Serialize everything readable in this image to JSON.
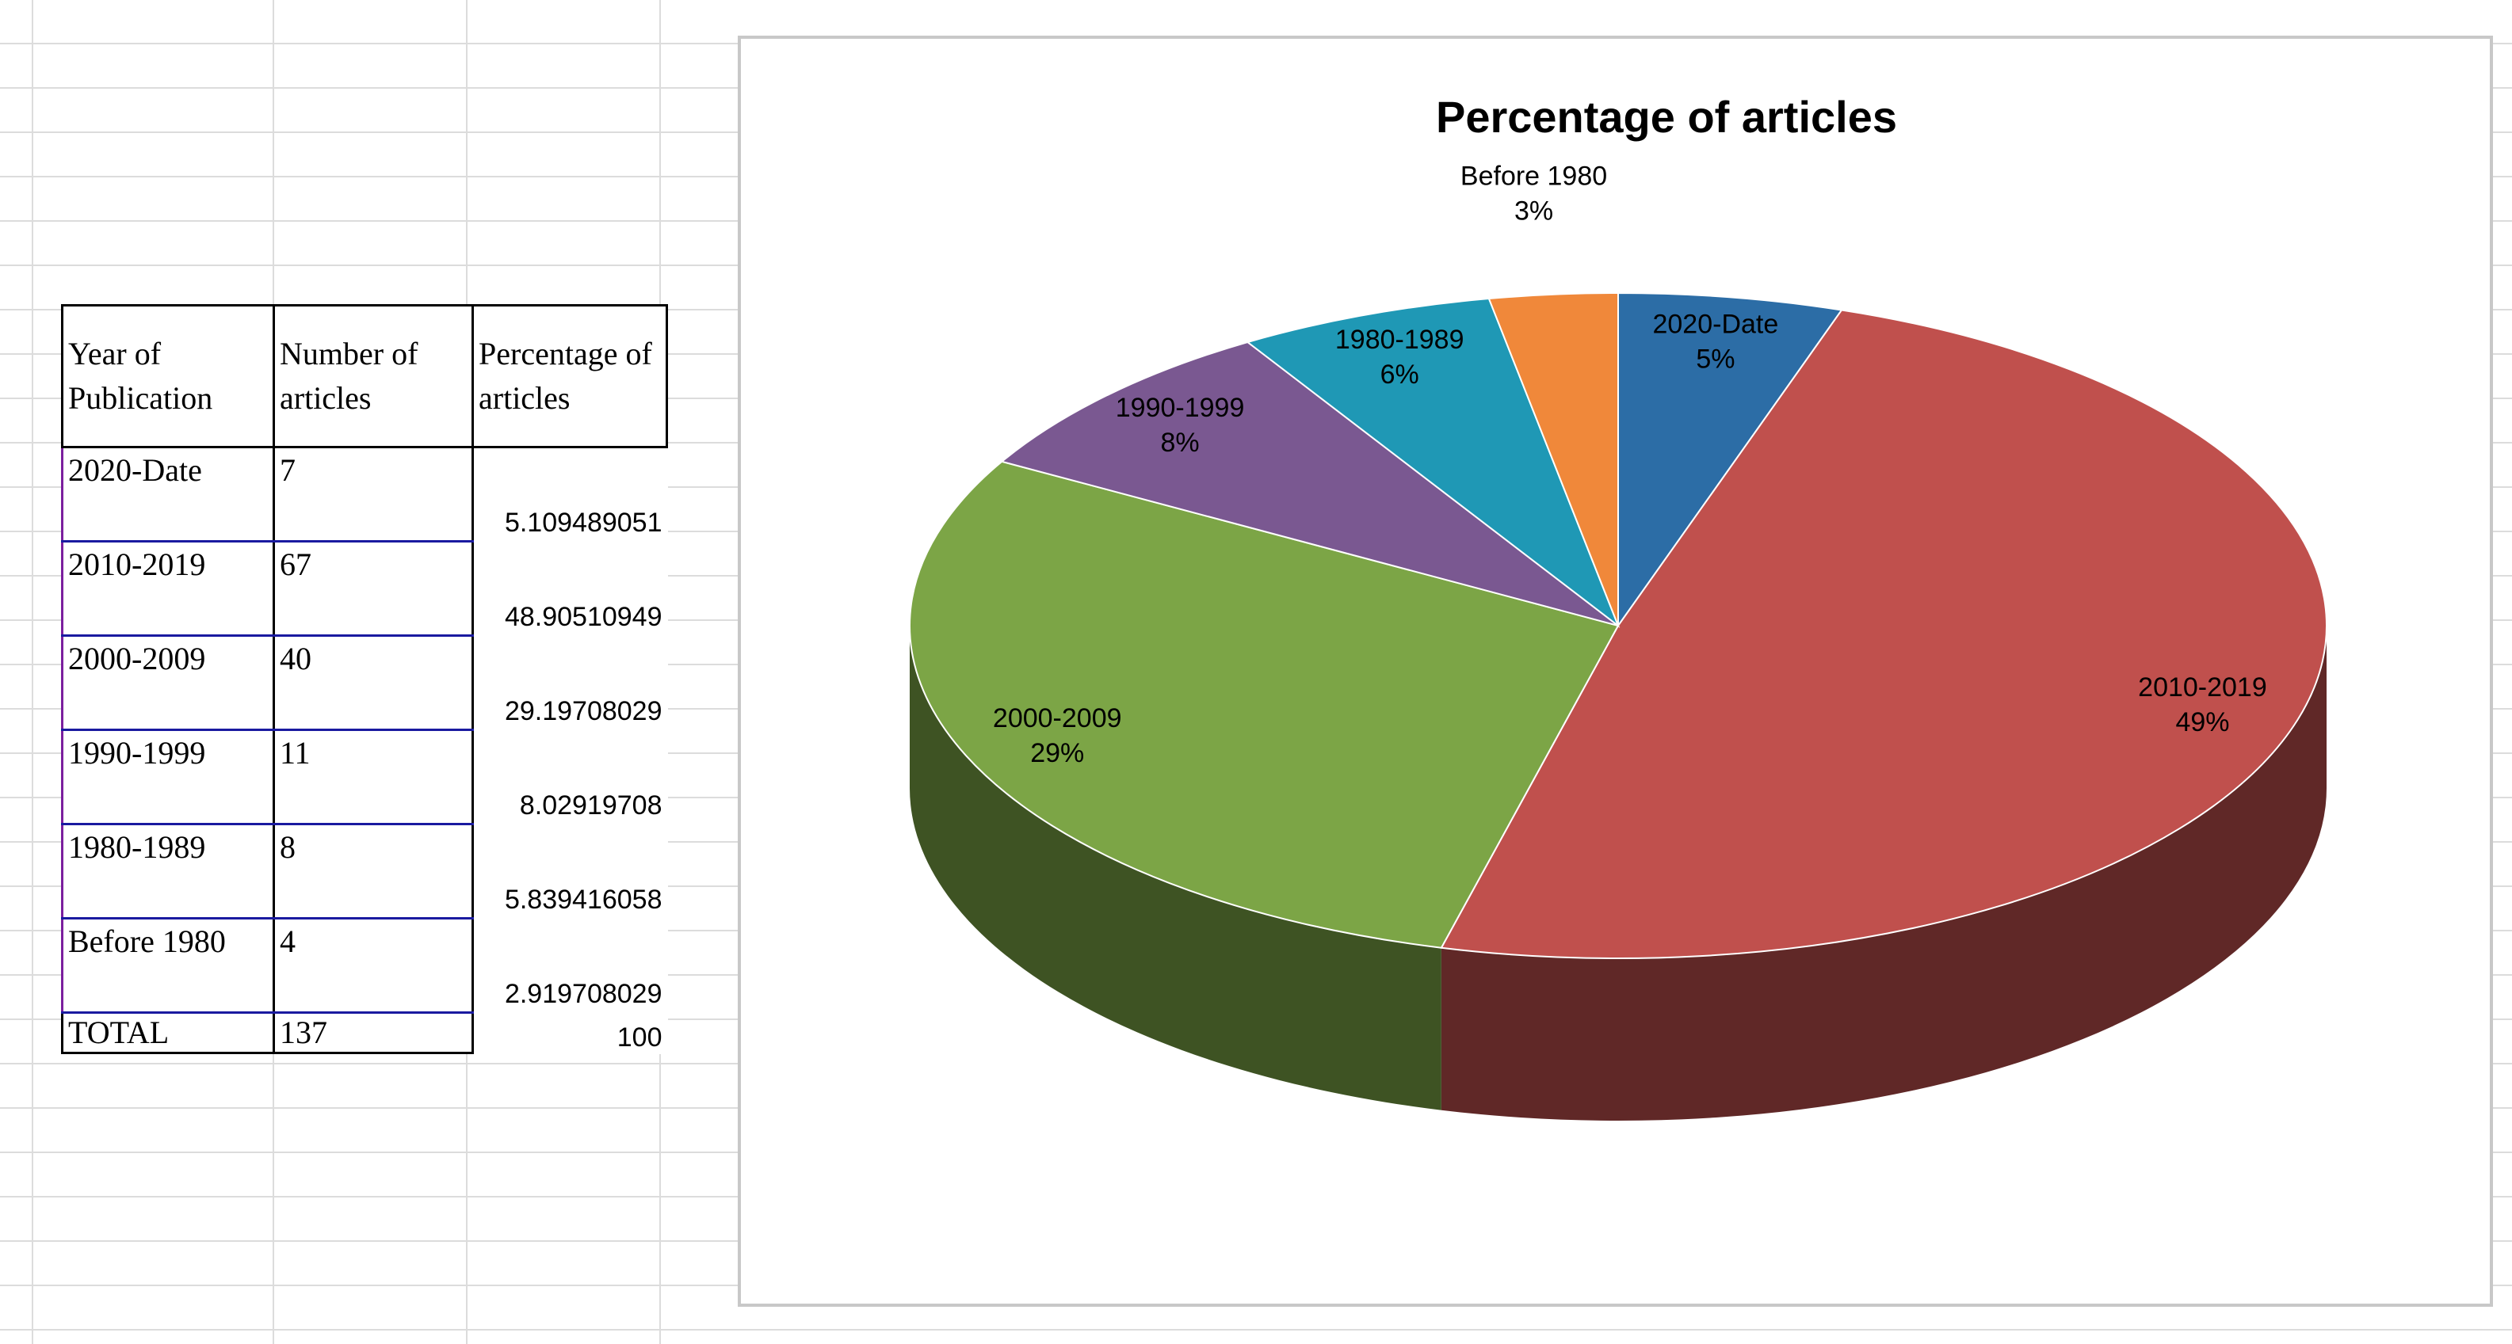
{
  "table": {
    "header": [
      "Year of Publication",
      "Number of articles",
      "Percentage of articles"
    ],
    "rows": [
      [
        "2020-Date",
        "7",
        "5.109489051"
      ],
      [
        "2010-2019",
        "67",
        "48.90510949"
      ],
      [
        "2000-2009",
        "40",
        "29.19708029"
      ],
      [
        "1990-1999",
        "11",
        "8.02919708"
      ],
      [
        "1980-1989",
        "8",
        "5.839416058"
      ],
      [
        "Before 1980",
        "4",
        "2.919708029"
      ]
    ],
    "total": [
      "TOTAL",
      "137",
      "100"
    ]
  },
  "chart_data": {
    "type": "pie",
    "title": "Percentage of articles",
    "categories": [
      "2020-Date",
      "2010-2019",
      "2000-2009",
      "1990-1999",
      "1980-1989",
      "Before 1980"
    ],
    "values": [
      5.109489051,
      48.90510949,
      29.19708029,
      8.02919708,
      5.839416058,
      2.919708029
    ],
    "value_labels": [
      "5%",
      "49%",
      "29%",
      "8%",
      "6%",
      "3%"
    ],
    "colors": [
      "#2c6da6",
      "#c0504d",
      "#7ca546",
      "#7a5891",
      "#1f98b5",
      "#f0883a"
    ]
  }
}
